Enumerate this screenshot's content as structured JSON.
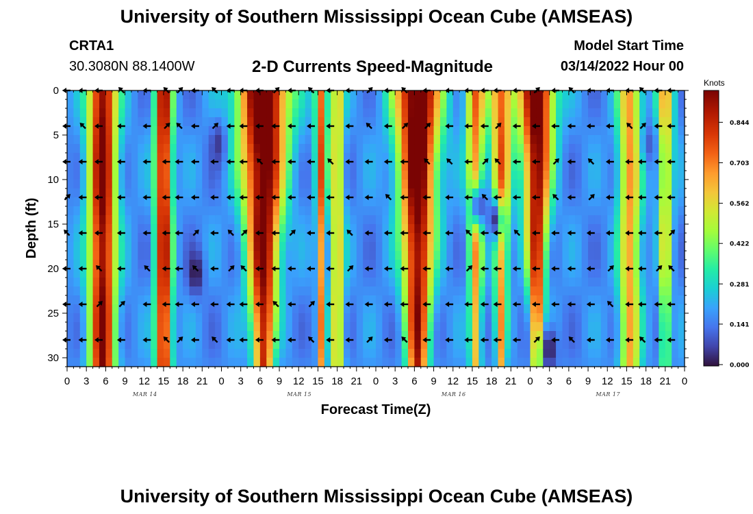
{
  "header": {
    "title": "University of Southern Mississippi Ocean Cube (AMSEAS)",
    "station_id": "CRTA1",
    "coordinates": "30.3080N  88.1400W",
    "subtitle": "2-D Currents Speed-Magnitude",
    "model_start_label": "Model Start Time",
    "model_start_value": "03/14/2022 Hour 00"
  },
  "footer": {
    "title": "University of Southern Mississippi Ocean Cube (AMSEAS)"
  },
  "chart_data": {
    "type": "heatmap",
    "title": "2-D Currents Speed-Magnitude",
    "xlabel": "Forecast Time(Z)",
    "ylabel": "Depth (ft)",
    "x_range_hours": [
      0,
      96
    ],
    "y_range_ft": [
      0,
      31
    ],
    "y_inverted": true,
    "x_tick_labels": [
      "0",
      "3",
      "6",
      "9",
      "12",
      "15",
      "18",
      "21",
      "0",
      "3",
      "6",
      "9",
      "12",
      "15",
      "18",
      "21",
      "0",
      "3",
      "6",
      "9",
      "12",
      "15",
      "18",
      "21",
      "0",
      "3",
      "6",
      "9",
      "12",
      "15",
      "18",
      "21",
      "0"
    ],
    "x_tick_hours": [
      0,
      3,
      6,
      9,
      12,
      15,
      18,
      21,
      24,
      27,
      30,
      33,
      36,
      39,
      42,
      45,
      48,
      51,
      54,
      57,
      60,
      63,
      66,
      69,
      72,
      75,
      78,
      81,
      84,
      87,
      90,
      93,
      96
    ],
    "y_ticks": [
      0,
      5,
      10,
      15,
      20,
      25,
      30
    ],
    "date_labels": [
      {
        "hour": 12,
        "text": "MAR 14"
      },
      {
        "hour": 36,
        "text": "MAR 15"
      },
      {
        "hour": 60,
        "text": "MAR 16"
      },
      {
        "hour": 84,
        "text": "MAR 17"
      }
    ],
    "colorbar": {
      "unit": "Knots",
      "range": [
        0,
        0.95
      ],
      "ticks": [
        0.0,
        0.141,
        0.281,
        0.422,
        0.562,
        0.703,
        0.844
      ],
      "tick_labels": [
        "0.000",
        "0.141",
        "0.281",
        "0.422",
        "0.562",
        "0.703",
        "0.844"
      ]
    },
    "vector_depths_ft": [
      0,
      4,
      8,
      12,
      16,
      20,
      24,
      28
    ],
    "vector_hours": [
      0,
      2.5,
      5,
      8.5,
      12.5,
      15.5,
      17.5,
      20,
      23,
      25.5,
      27.5,
      30,
      32.5,
      35,
      38,
      41,
      44,
      47,
      50,
      52.5,
      56,
      59.5,
      62.5,
      65,
      67,
      70,
      73,
      76,
      78.5,
      81.5,
      84.5,
      87.5,
      89.5,
      92,
      94
    ],
    "speed_bands": [
      {
        "center_hour": 5.5,
        "width_hours": 2.2,
        "peak_knots": 0.8,
        "depth_taper": 0.15
      },
      {
        "center_hour": 15.0,
        "width_hours": 1.3,
        "peak_knots": 0.75,
        "depth_taper": 0.1
      },
      {
        "center_hour": 30.5,
        "width_hours": 4.0,
        "peak_knots": 0.92,
        "depth_taper": 0.75
      },
      {
        "center_hour": 39.5,
        "width_hours": 0.9,
        "peak_knots": 0.6,
        "depth_taper": 0.6
      },
      {
        "center_hour": 42.0,
        "width_hours": 1.0,
        "peak_knots": 0.45,
        "depth_taper": 0.0
      },
      {
        "center_hour": 54.5,
        "width_hours": 3.5,
        "peak_knots": 0.9,
        "depth_taper": 0.65
      },
      {
        "center_hour": 63.5,
        "width_hours": 1.5,
        "peak_knots": 0.55,
        "depth_taper": 0.55
      },
      {
        "center_hour": 67.5,
        "width_hours": 1.8,
        "peak_knots": 0.6,
        "depth_taper": 0.75
      },
      {
        "center_hour": 73.0,
        "width_hours": 2.8,
        "peak_knots": 0.85,
        "depth_taper": 0.9
      },
      {
        "center_hour": 87.5,
        "width_hours": 1.8,
        "peak_knots": 0.5,
        "depth_taper": 0.2
      },
      {
        "center_hour": 93.0,
        "width_hours": 1.3,
        "peak_knots": 0.45,
        "depth_taper": 0.6
      }
    ],
    "low_spots": [
      {
        "hour": 20.0,
        "depth_ft": 20.5,
        "knots": 0.0
      },
      {
        "hour": 23.5,
        "depth_ft": 6.0,
        "knots": 0.05
      },
      {
        "hour": 64.0,
        "depth_ft": 13.0,
        "knots": 0.05
      },
      {
        "hour": 66.5,
        "depth_ft": 14.5,
        "knots": 0.05
      },
      {
        "hour": 75.0,
        "depth_ft": 29.0,
        "knots": 0.0
      },
      {
        "hour": 90.5,
        "depth_ft": 6.0,
        "knots": 0.1
      }
    ]
  }
}
